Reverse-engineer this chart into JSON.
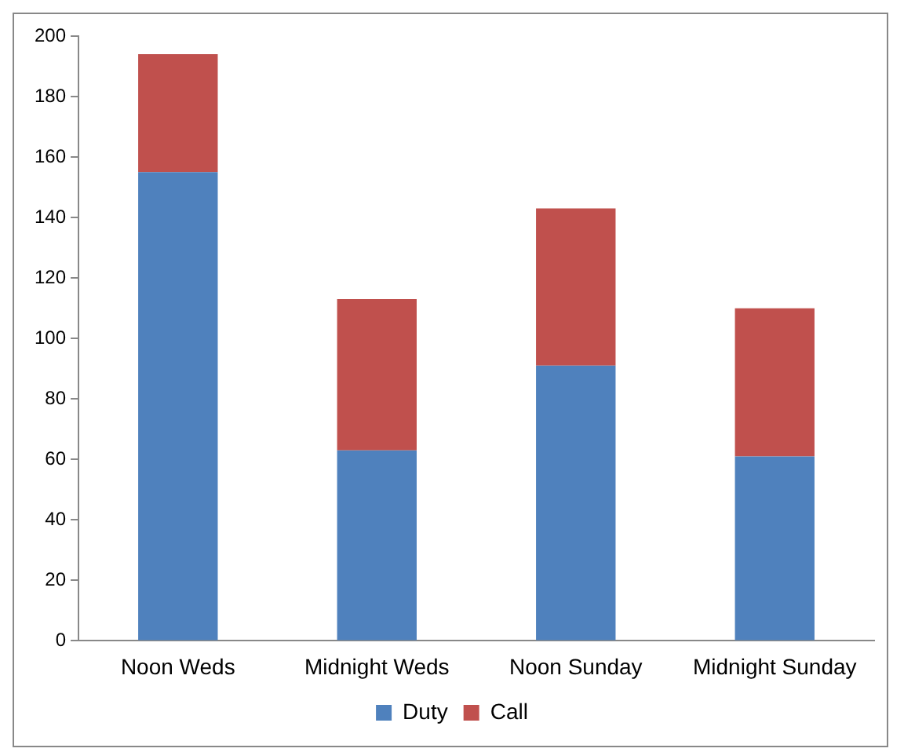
{
  "chart_data": {
    "type": "bar",
    "stacked": true,
    "categories": [
      "Noon Weds",
      "Midnight Weds",
      "Noon Sunday",
      "Midnight Sunday"
    ],
    "series": [
      {
        "name": "Duty",
        "color": "#4f81bd",
        "values": [
          155,
          63,
          91,
          61
        ]
      },
      {
        "name": "Call",
        "color": "#c0504d",
        "values": [
          39,
          50,
          52,
          49
        ]
      }
    ],
    "ylim": [
      0,
      200
    ],
    "yticks": [
      0,
      20,
      40,
      60,
      80,
      100,
      120,
      140,
      160,
      180,
      200
    ],
    "grid": false,
    "legend": "bottom"
  }
}
